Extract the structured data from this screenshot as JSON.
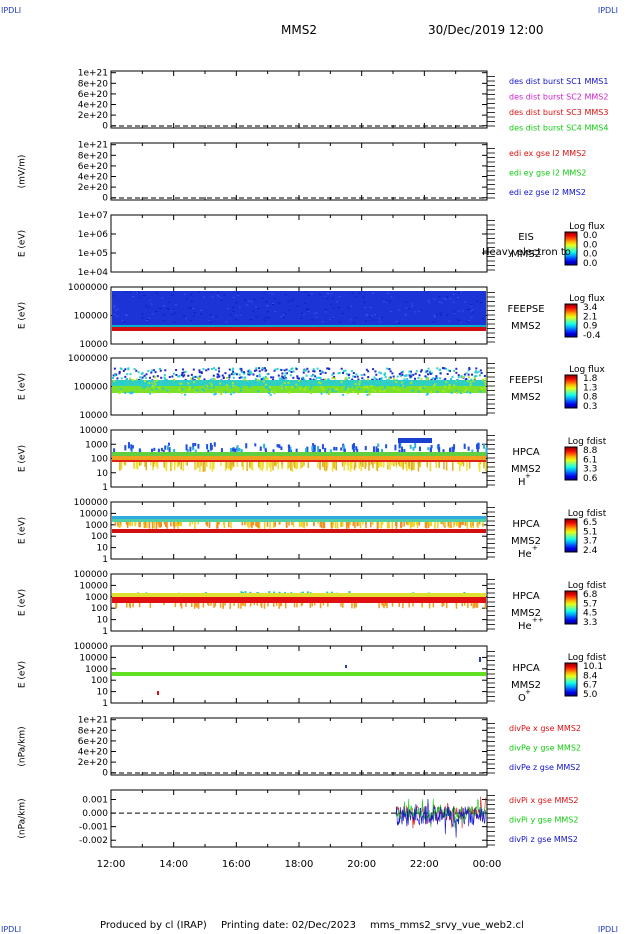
{
  "header": {
    "left_corner": "IPDLI",
    "right_corner": "IPDLI",
    "title": "MMS2",
    "datetime": "30/Dec/2019 12:00"
  },
  "footer": {
    "produced": "Produced by cl (IRAP)",
    "printing": "Printing date: 02/Dec/2023",
    "script": "mms_mms2_srvy_vue_web2.cl",
    "left_corner": "IPDLI",
    "right_corner": "IPDLI"
  },
  "colors": {
    "red": "#dd1111",
    "magenta": "#cc22cc",
    "green": "#11cc11",
    "blue": "#1111cc"
  },
  "chart_data": [
    {
      "type": "line",
      "ylabel": "",
      "yticks": [
        "0",
        "2e+20",
        "4e+20",
        "6e+20",
        "8e+20",
        "1e+21"
      ],
      "series": [
        {
          "name": "des dist burst SC1 MMS1",
          "color": "#1111cc",
          "values": []
        },
        {
          "name": "des dist burst SC2 MMS2",
          "color": "#cc22cc",
          "values": []
        },
        {
          "name": "des dist burst SC3 MMS3",
          "color": "#dd1111",
          "values": []
        },
        {
          "name": "des dist burst SC4 MMS4",
          "color": "#11cc11",
          "values": []
        }
      ]
    },
    {
      "type": "line",
      "ylabel": "(mV/m)",
      "yticks": [
        "0",
        "2e+20",
        "4e+20",
        "6e+20",
        "8e+20",
        "1e+21"
      ],
      "series": [
        {
          "name": "edi ex gse l2 MMS2",
          "color": "#dd1111",
          "values": []
        },
        {
          "name": "edi ey gse l2 MMS2",
          "color": "#11cc11",
          "values": []
        },
        {
          "name": "edi ez gse l2 MMS2",
          "color": "#1111cc",
          "values": []
        }
      ]
    },
    {
      "type": "heatmap",
      "ylabel": "E (eV)",
      "log_y": true,
      "yticks": [
        "1e+04",
        "1e+05",
        "1e+06",
        "1e+07"
      ],
      "instrument": "EIS",
      "spacecraft": "MMS2",
      "species": "",
      "overlay_text": "Heavy electron to",
      "colorbar_title": "Log flux",
      "colorbar_ticks": [
        "0.0",
        "0.0",
        "0.0",
        "0.0"
      ]
    },
    {
      "type": "heatmap",
      "ylabel": "E (eV)",
      "log_y": true,
      "yticks": [
        "10000",
        "100000",
        "1000000"
      ],
      "instrument": "FEEPSE",
      "spacecraft": "MMS2",
      "species": "",
      "colorbar_title": "Log flux",
      "colorbar_ticks": [
        "3.4",
        "2.1",
        "0.9",
        "-0.4"
      ]
    },
    {
      "type": "heatmap",
      "ylabel": "E (eV)",
      "log_y": true,
      "yticks": [
        "10000",
        "100000",
        "1000000"
      ],
      "instrument": "FEEPSI",
      "spacecraft": "MMS2",
      "species": "",
      "colorbar_title": "Log flux",
      "colorbar_ticks": [
        "1.8",
        "1.3",
        "0.8",
        "0.3"
      ]
    },
    {
      "type": "heatmap",
      "ylabel": "E (eV)",
      "log_y": true,
      "yticks": [
        "1",
        "10",
        "100",
        "1000",
        "10000"
      ],
      "instrument": "HPCA",
      "spacecraft": "MMS2",
      "species": "H",
      "species_sup": "+",
      "colorbar_title": "Log fdist",
      "colorbar_ticks": [
        "8.8",
        "6.1",
        "3.3",
        "0.6"
      ]
    },
    {
      "type": "heatmap",
      "ylabel": "E (eV)",
      "log_y": true,
      "yticks": [
        "1",
        "10",
        "100",
        "1000",
        "10000",
        "100000"
      ],
      "instrument": "HPCA",
      "spacecraft": "MMS2",
      "species": "He",
      "species_sup": "+",
      "colorbar_title": "Log fdist",
      "colorbar_ticks": [
        "6.5",
        "5.1",
        "3.7",
        "2.4"
      ]
    },
    {
      "type": "heatmap",
      "ylabel": "E (eV)",
      "log_y": true,
      "yticks": [
        "1",
        "10",
        "100",
        "1000",
        "10000",
        "100000"
      ],
      "instrument": "HPCA",
      "spacecraft": "MMS2",
      "species": "He",
      "species_sup": "++",
      "colorbar_title": "Log fdist",
      "colorbar_ticks": [
        "6.8",
        "5.7",
        "4.5",
        "3.3"
      ]
    },
    {
      "type": "heatmap",
      "ylabel": "E (eV)",
      "log_y": true,
      "yticks": [
        "1",
        "10",
        "100",
        "1000",
        "10000",
        "100000"
      ],
      "instrument": "HPCA",
      "spacecraft": "MMS2",
      "species": "O",
      "species_sup": "+",
      "colorbar_title": "Log fdist",
      "colorbar_ticks": [
        "10.1",
        "8.4",
        "6.7",
        "5.0"
      ]
    },
    {
      "type": "line",
      "ylabel": "(nPa/km)",
      "yticks": [
        "0",
        "2e+20",
        "4e+20",
        "6e+20",
        "8e+20",
        "1e+21"
      ],
      "series": [
        {
          "name": "divPe x gse MMS2",
          "color": "#dd1111",
          "values": []
        },
        {
          "name": "divPe y gse MMS2",
          "color": "#11cc11",
          "values": []
        },
        {
          "name": "divPe z gse MMS2",
          "color": "#1111cc",
          "values": []
        }
      ]
    },
    {
      "type": "line",
      "ylabel": "(nPa/km)",
      "yticks": [
        "-0.002",
        "-0.001",
        "0.000",
        "0.001"
      ],
      "ylim": [
        -0.0025,
        0.0017
      ],
      "data_start_hour": 21.1,
      "series": [
        {
          "name": "divPi x gse MMS2",
          "color": "#dd1111"
        },
        {
          "name": "divPi y gse MMS2",
          "color": "#11cc11"
        },
        {
          "name": "divPi z gse MMS2",
          "color": "#1111cc"
        }
      ]
    }
  ],
  "time_axis": {
    "ticks": [
      "12:00",
      "14:00",
      "16:00",
      "18:00",
      "20:00",
      "22:00",
      "00:00"
    ],
    "start_hour": 12,
    "end_hour": 24
  }
}
